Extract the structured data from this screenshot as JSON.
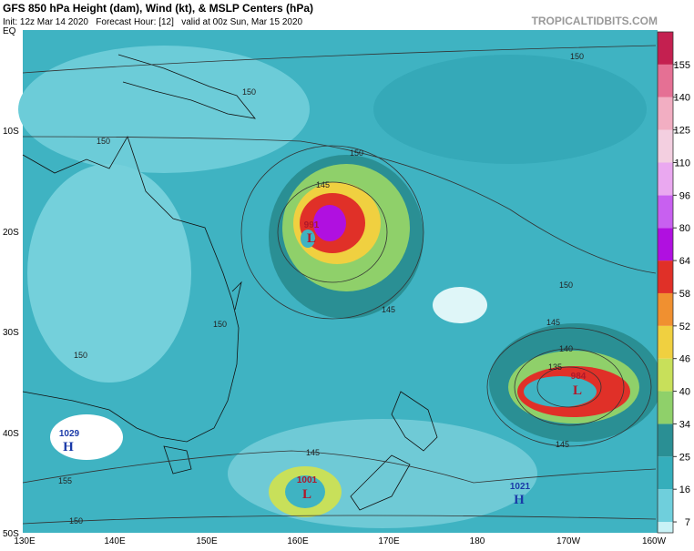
{
  "header": {
    "title": "GFS 850 hPa Height (dam), Wind (kt), & MSLP Centers (hPa)",
    "subtitle": "Init: 12z Mar 14 2020   Forecast Hour: [12]   valid at 00z Sun, Mar 15 2020",
    "brand": "TROPICALTIDBITS.COM"
  },
  "map": {
    "lat_labels": [
      "EQ",
      "10S",
      "20S",
      "30S",
      "40S",
      "50S"
    ],
    "lon_labels": [
      "130E",
      "140E",
      "150E",
      "160E",
      "170E",
      "180",
      "170W",
      "160W"
    ],
    "centers": [
      {
        "value": 1029,
        "kind": "H"
      },
      {
        "value": 1001,
        "kind": "L"
      },
      {
        "value": 1021,
        "kind": "H"
      },
      {
        "value": 984,
        "kind": "L"
      },
      {
        "value": 991,
        "kind": "L"
      }
    ],
    "contour_labels": [
      150,
      150,
      150,
      150,
      150,
      150,
      150,
      145,
      145,
      145,
      145,
      145,
      140,
      135,
      155,
      150
    ]
  },
  "colorbar": {
    "ticks": [
      7,
      16,
      25,
      34,
      40,
      46,
      52,
      58,
      64,
      80,
      96,
      110,
      125,
      140,
      155
    ],
    "colors": [
      "#c8f2f6",
      "#6fcfdc",
      "#35aebb",
      "#2a8f94",
      "#8fd06a",
      "#c8e05a",
      "#f0d040",
      "#f09030",
      "#e03028",
      "#b010e0",
      "#c860f0",
      "#eaa8f0",
      "#f3cfe0",
      "#f2aec2",
      "#e57094",
      "#c42050"
    ]
  }
}
